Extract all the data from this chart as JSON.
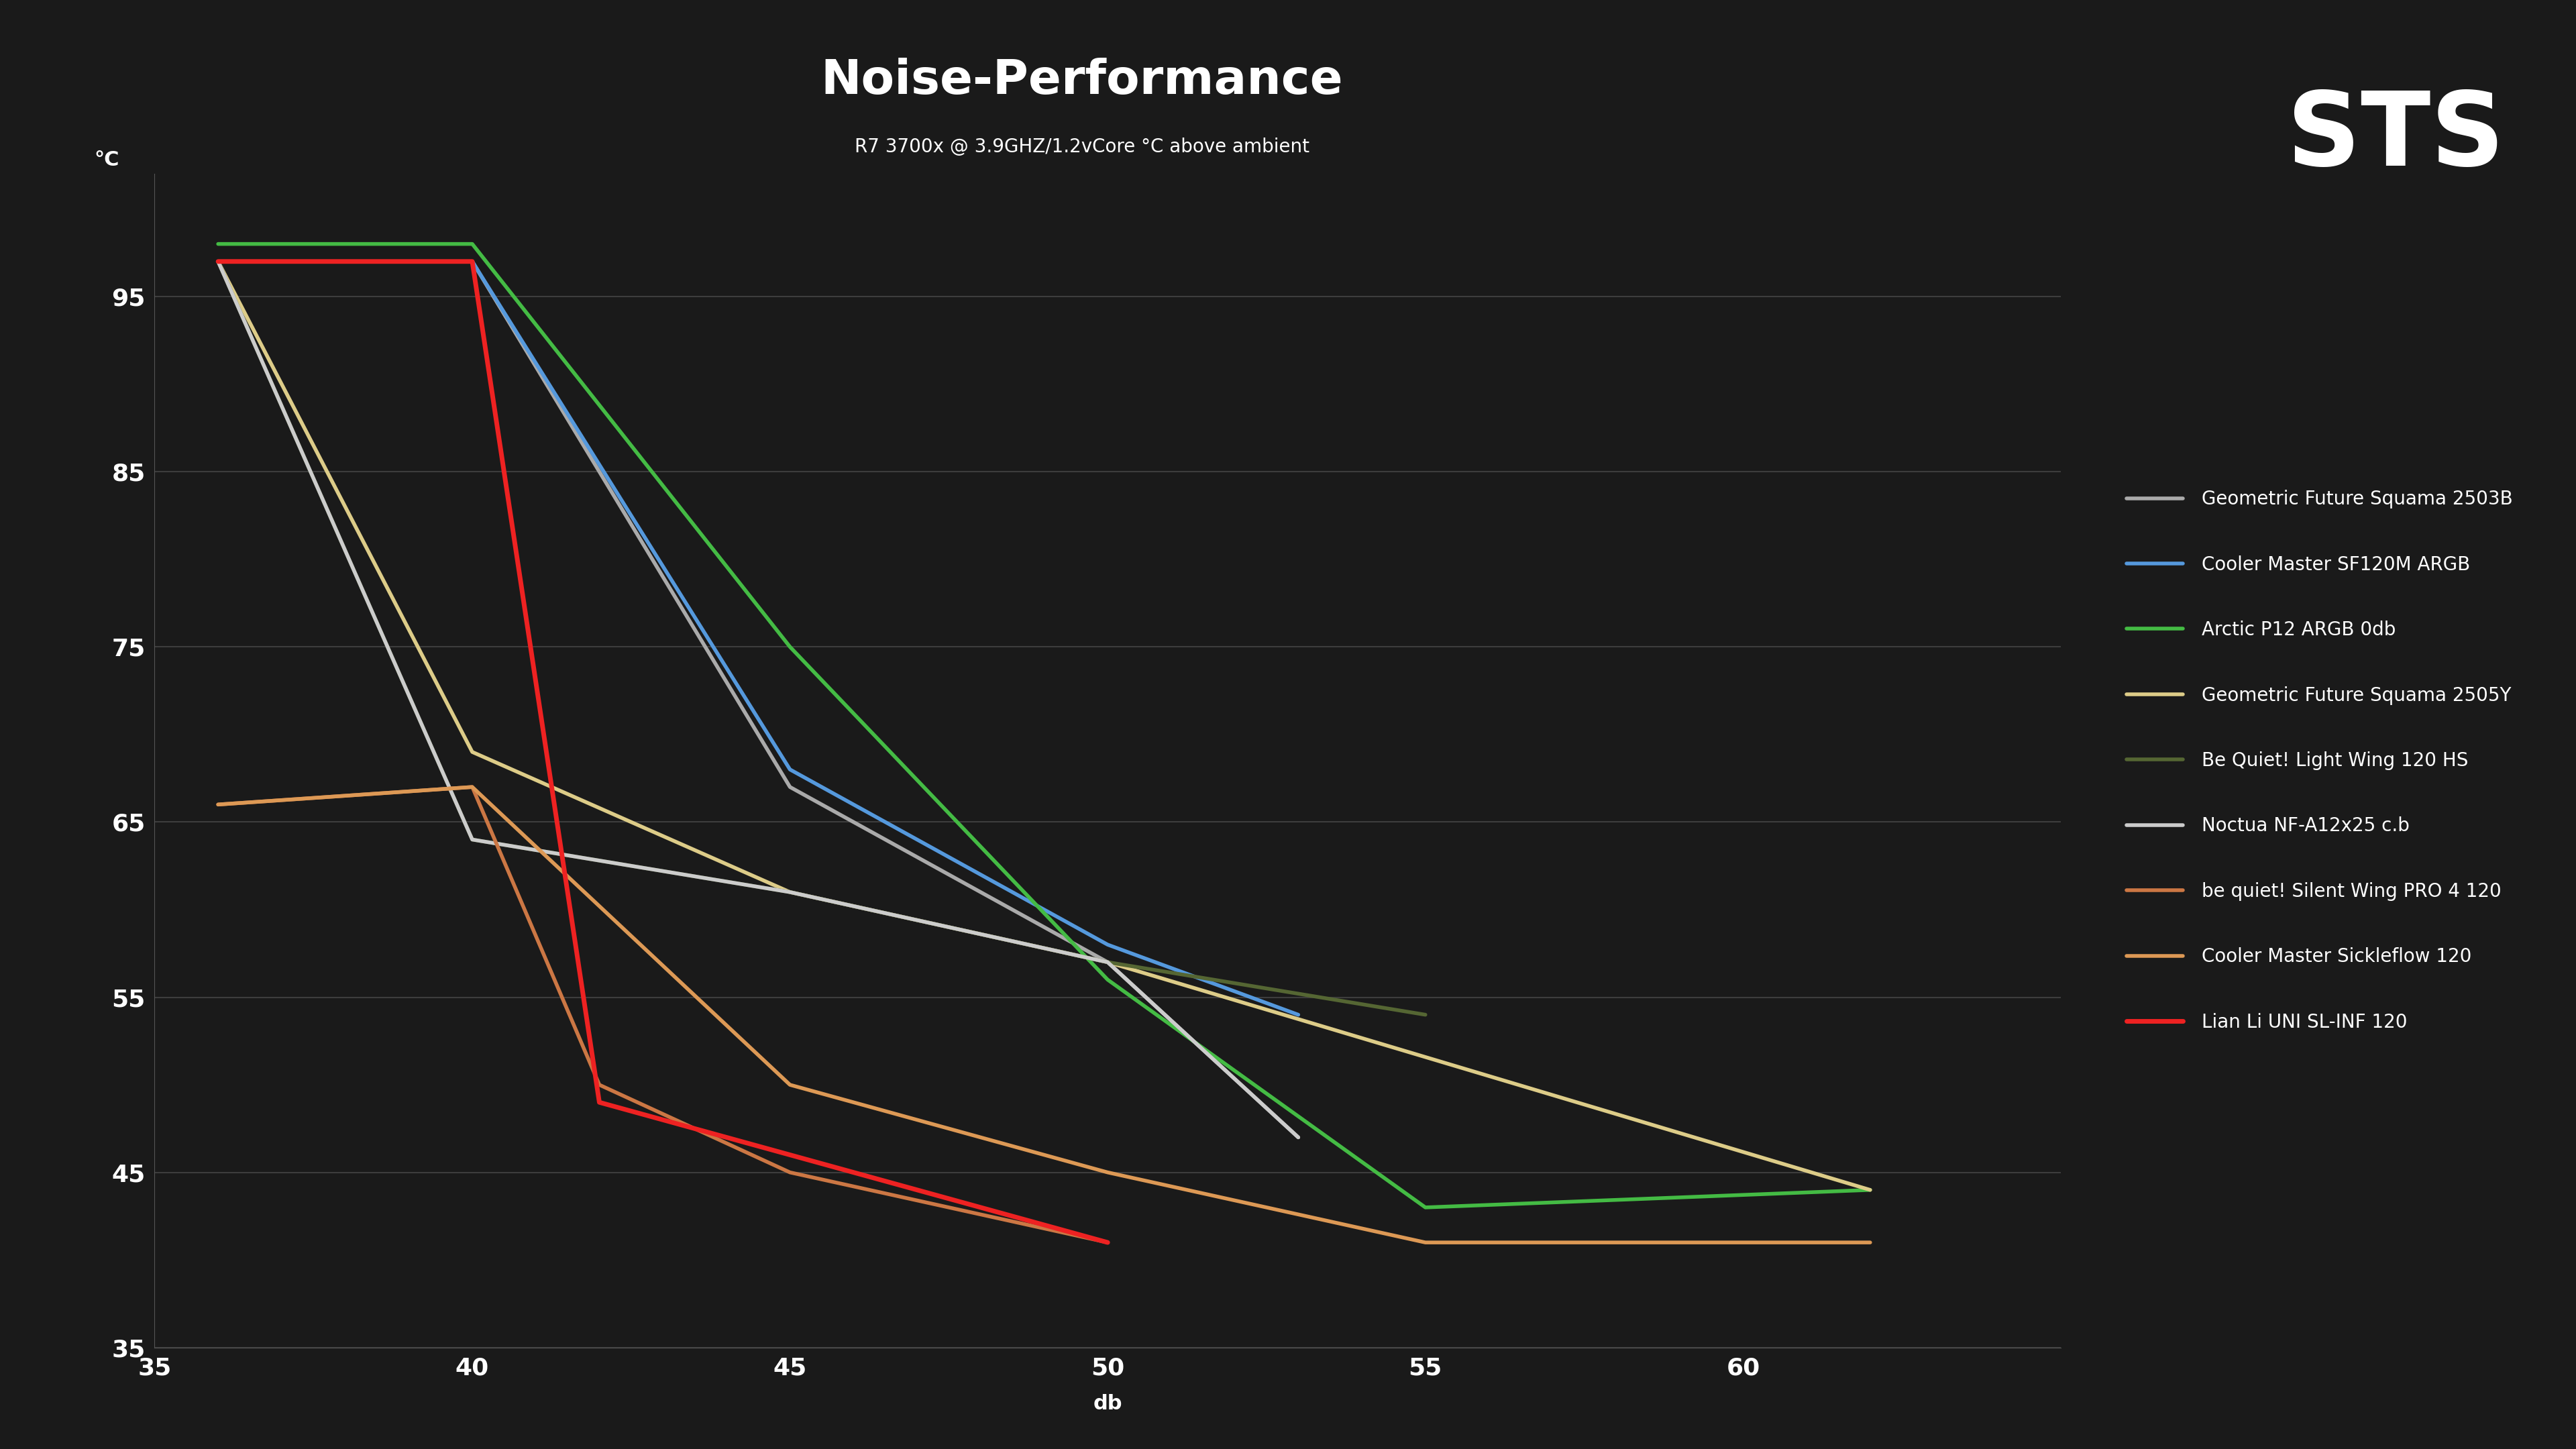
{
  "title": "Noise-Performance",
  "subtitle": "R7 3700x @ 3.9GHZ/1.2vCore °C above ambient",
  "xlabel": "db",
  "ylabel": "°C",
  "background_color": "#1a1a1a",
  "plot_bg_color": "#1e1e1e",
  "grid_color": "#555555",
  "text_color": "#ffffff",
  "title_fontsize": 52,
  "subtitle_fontsize": 20,
  "axis_label_fontsize": 22,
  "legend_fontsize": 20,
  "tick_fontsize": 26,
  "xlim": [
    35,
    65
  ],
  "ylim": [
    35,
    102
  ],
  "xticks": [
    35,
    40,
    45,
    50,
    55,
    60
  ],
  "yticks": [
    35,
    45,
    55,
    65,
    75,
    85,
    95
  ],
  "series": [
    {
      "label": "Geometric Future Squama 2503B",
      "color": "#aaaaaa",
      "linewidth": 4,
      "x": [
        36,
        40,
        45,
        50,
        53
      ],
      "y": [
        97,
        97,
        67,
        57,
        47
      ]
    },
    {
      "label": "Cooler Master SF120M ARGB",
      "color": "#5599dd",
      "linewidth": 4,
      "x": [
        36,
        40,
        45,
        50,
        53
      ],
      "y": [
        97,
        97,
        68,
        58,
        54
      ]
    },
    {
      "label": "Arctic P12 ARGB 0db",
      "color": "#44bb44",
      "linewidth": 4,
      "x": [
        36,
        40,
        45,
        50,
        55,
        62
      ],
      "y": [
        98,
        98,
        75,
        56,
        43,
        44
      ]
    },
    {
      "label": "Geometric Future Squama 2505Y",
      "color": "#ddcc88",
      "linewidth": 4,
      "x": [
        36,
        40,
        45,
        50,
        62
      ],
      "y": [
        97,
        69,
        61,
        57,
        44
      ]
    },
    {
      "label": "Be Quiet! Light Wing 120 HS",
      "color": "#556633",
      "linewidth": 4,
      "x": [
        36,
        40,
        45,
        50,
        55
      ],
      "y": [
        97,
        64,
        61,
        57,
        54
      ]
    },
    {
      "label": "Noctua NF-A12x25 c.b",
      "color": "#cccccc",
      "linewidth": 4,
      "x": [
        36,
        40,
        45,
        50,
        53
      ],
      "y": [
        97,
        64,
        61,
        57,
        47
      ]
    },
    {
      "label": "be quiet! Silent Wing PRO 4 120",
      "color": "#cc7744",
      "linewidth": 4,
      "x": [
        36,
        40,
        42,
        45,
        50
      ],
      "y": [
        66,
        67,
        50,
        45,
        41
      ]
    },
    {
      "label": "Cooler Master Sickleflow 120",
      "color": "#dd9955",
      "linewidth": 4,
      "x": [
        36,
        40,
        45,
        50,
        55,
        62
      ],
      "y": [
        66,
        67,
        50,
        45,
        41,
        41
      ]
    },
    {
      "label": "Lian Li UNI SL-INF 120",
      "color": "#ee2222",
      "linewidth": 5,
      "x": [
        36,
        40,
        42,
        50
      ],
      "y": [
        97,
        97,
        49,
        41
      ]
    }
  ],
  "sts_logo": "STS"
}
